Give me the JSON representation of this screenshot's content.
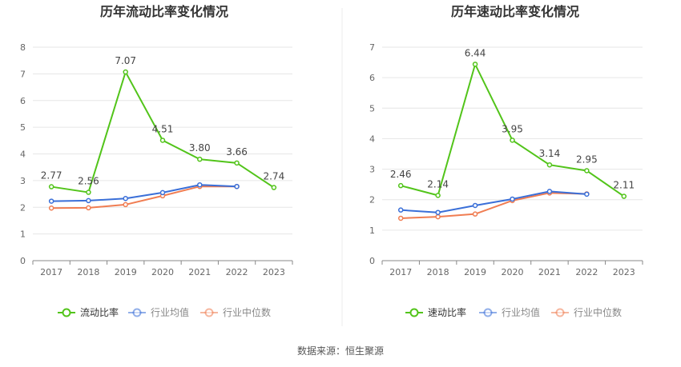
{
  "chart_data": [
    {
      "type": "line",
      "title": "历年流动比率变化情况",
      "categories": [
        "2017",
        "2018",
        "2019",
        "2020",
        "2021",
        "2022",
        "2023"
      ],
      "ylim": [
        0,
        8
      ],
      "yticks": [
        0,
        1,
        2,
        3,
        4,
        5,
        6,
        7,
        8
      ],
      "grid": true,
      "legend_position": "bottom",
      "series": [
        {
          "name": "流动比率",
          "color": "#52c41a",
          "labeled": true,
          "values": [
            2.77,
            2.56,
            7.07,
            4.51,
            3.8,
            3.66,
            2.74
          ],
          "labels": [
            "2.77",
            "2.56",
            "7.07",
            "4.51",
            "3.80",
            "3.66",
            "2.74"
          ]
        },
        {
          "name": "行业均值",
          "color": "#3a6fd8",
          "labeled": false,
          "values": [
            2.23,
            2.25,
            2.33,
            2.55,
            2.84,
            2.78,
            null
          ]
        },
        {
          "name": "行业中位数",
          "color": "#f07d52",
          "labeled": false,
          "values": [
            1.97,
            1.98,
            2.1,
            2.43,
            2.78,
            2.78,
            null
          ]
        }
      ]
    },
    {
      "type": "line",
      "title": "历年速动比率变化情况",
      "categories": [
        "2017",
        "2018",
        "2019",
        "2020",
        "2021",
        "2022",
        "2023"
      ],
      "ylim": [
        0,
        7
      ],
      "yticks": [
        0,
        1,
        2,
        3,
        4,
        5,
        6,
        7
      ],
      "grid": true,
      "legend_position": "bottom",
      "series": [
        {
          "name": "速动比率",
          "color": "#52c41a",
          "labeled": true,
          "values": [
            2.46,
            2.14,
            6.44,
            3.95,
            3.14,
            2.95,
            2.11
          ],
          "labels": [
            "2.46",
            "2.14",
            "6.44",
            "3.95",
            "3.14",
            "2.95",
            "2.11"
          ]
        },
        {
          "name": "行业均值",
          "color": "#3a6fd8",
          "labeled": false,
          "values": [
            1.66,
            1.58,
            1.81,
            2.02,
            2.27,
            2.18,
            null
          ]
        },
        {
          "name": "行业中位数",
          "color": "#f07d52",
          "labeled": false,
          "values": [
            1.39,
            1.44,
            1.53,
            1.97,
            2.22,
            2.19,
            null
          ]
        }
      ]
    }
  ],
  "footer": {
    "source": "数据来源：恒生聚源"
  }
}
